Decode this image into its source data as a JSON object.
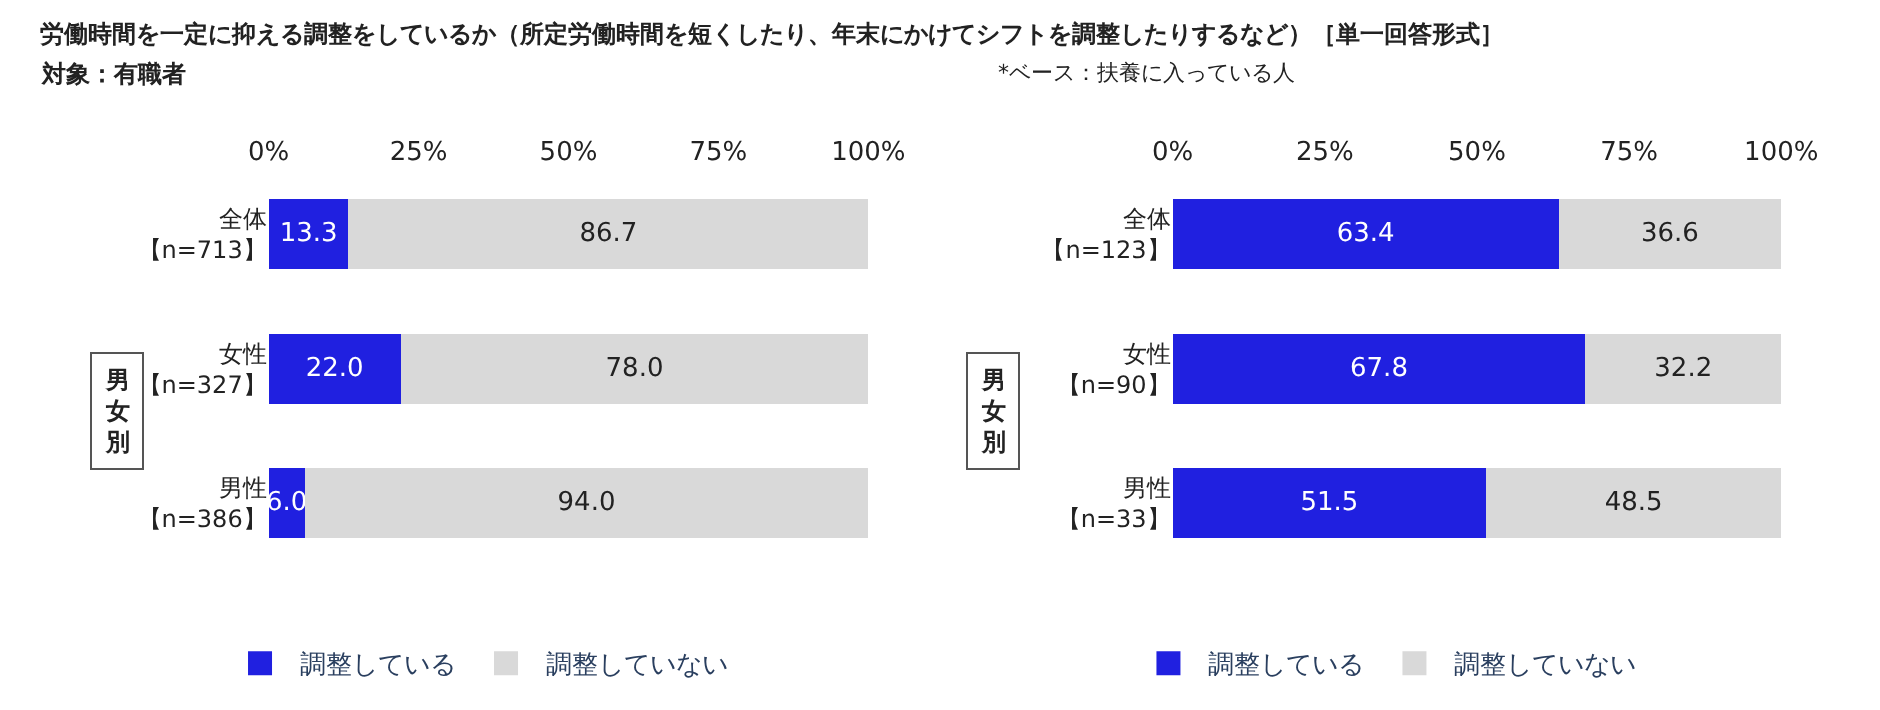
{
  "chart_data": [
    {
      "type": "bar",
      "orientation": "horizontal",
      "stacked": true,
      "title": "労働時間を一定に抑える調整をしているか（所定労働時間を短くしたり、年末にかけてシフトを調整したりするなど）［単一回答形式］",
      "subtitle": "対象：有職者",
      "categories": [
        "全体【n=713】",
        "女性【n=327】",
        "男性【n=386】"
      ],
      "series": [
        {
          "name": "調整している",
          "color": "#2020e0",
          "values": [
            13.3,
            22.0,
            6.0
          ]
        },
        {
          "name": "調整していない",
          "color": "#d9d9d9",
          "values": [
            86.7,
            78.0,
            94.0
          ]
        }
      ],
      "xlim": [
        0,
        100
      ],
      "xticks": [
        {
          "value": 0,
          "label": "0%"
        },
        {
          "value": 25,
          "label": "25%"
        },
        {
          "value": 50,
          "label": "50%"
        },
        {
          "value": 75,
          "label": "75%"
        },
        {
          "value": 100,
          "label": "100%"
        }
      ],
      "value_labels": [
        [
          "13.3",
          "22.0",
          "6.0"
        ],
        [
          "86.7",
          "78.0",
          "94.0"
        ]
      ],
      "annotations": [
        "男女別"
      ],
      "legend": "bottom"
    },
    {
      "type": "bar",
      "orientation": "horizontal",
      "stacked": true,
      "categories": [
        "全体【n=123】",
        "女性【n=90】",
        "男性【n=33】"
      ],
      "series": [
        {
          "name": "調整している",
          "color": "#2020e0",
          "values": [
            63.4,
            67.8,
            51.5
          ]
        },
        {
          "name": "調整していない",
          "color": "#d9d9d9",
          "values": [
            36.6,
            32.2,
            48.5
          ]
        }
      ],
      "xlim": [
        0,
        100
      ],
      "xticks": [
        {
          "value": 0,
          "label": "0%"
        },
        {
          "value": 25,
          "label": "25%"
        },
        {
          "value": 50,
          "label": "50%"
        },
        {
          "value": 75,
          "label": "75%"
        },
        {
          "value": 100,
          "label": "100%"
        }
      ],
      "value_labels": [
        [
          "63.4",
          "67.8",
          "51.5"
        ],
        [
          "36.6",
          "32.2",
          "48.5"
        ]
      ],
      "annotations": [
        "*ベース：扶養に入っている人",
        "男女別"
      ],
      "legend": "bottom"
    }
  ]
}
